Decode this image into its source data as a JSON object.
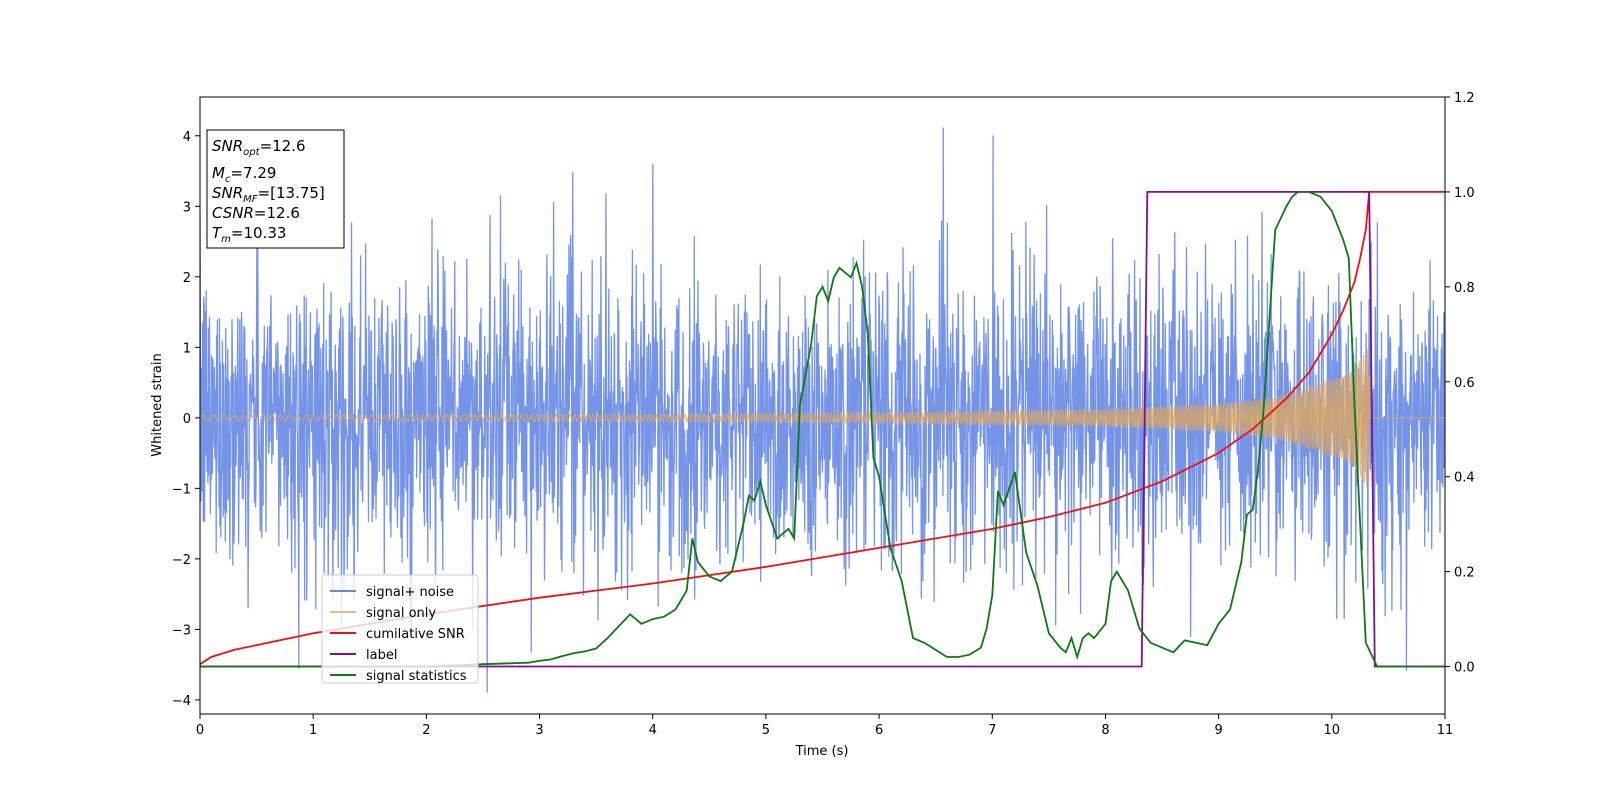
{
  "chart_data": {
    "type": "line",
    "xlabel": "Time (s)",
    "ylabel": "Whitened strain",
    "xlim": [
      0,
      11
    ],
    "ylim_left": [
      -4.2,
      4.55
    ],
    "ylim_right": [
      -0.1,
      1.2
    ],
    "x_ticks": [
      "0",
      "1",
      "2",
      "3",
      "4",
      "5",
      "6",
      "7",
      "8",
      "9",
      "10",
      "11"
    ],
    "y_left_ticks": [
      "4",
      "3",
      "2",
      "1",
      "0",
      "−1",
      "−2",
      "−3",
      "−4"
    ],
    "y_right_ticks": [
      "1.2",
      "1.0",
      "0.8",
      "0.6",
      "0.4",
      "0.2",
      "0.0"
    ],
    "grid": false,
    "legend_position": "lower-left",
    "annotation": {
      "snr_opt": {
        "sym": "SNR",
        "sub": "opt",
        "value": "=12.6"
      },
      "mc": {
        "sym": "M",
        "sub": "c",
        "value": "=7.29"
      },
      "snr_mf": {
        "sym": "SNR",
        "sub": "MF",
        "value": "=[13.75]"
      },
      "csnr": {
        "sym": "CSNR",
        "value": "=12.6"
      },
      "tm": {
        "sym": "T",
        "sub": "m",
        "value": "=10.33"
      }
    },
    "series": [
      {
        "name": "signal+ noise",
        "axis": "left",
        "color": "#6688e6",
        "style": "noise",
        "amplitude_sigma": 1.05,
        "x_range": [
          0,
          11
        ]
      },
      {
        "name": "signal only",
        "axis": "left",
        "color": "#e0a75c",
        "style": "chirp",
        "envelope": [
          [
            0,
            0.04
          ],
          [
            4,
            0.05
          ],
          [
            6,
            0.07
          ],
          [
            8,
            0.12
          ],
          [
            9,
            0.2
          ],
          [
            9.5,
            0.3
          ],
          [
            10,
            0.55
          ],
          [
            10.2,
            0.75
          ],
          [
            10.33,
            1.0
          ],
          [
            10.34,
            0.0
          ],
          [
            11,
            0.0
          ]
        ]
      },
      {
        "name": "cumilative SNR",
        "axis": "right",
        "color": "#ee1111",
        "style": "line",
        "x": [
          0,
          0.1,
          0.3,
          0.6,
          1,
          2,
          3,
          4,
          5,
          6,
          7,
          7.5,
          8,
          8.5,
          9,
          9.3,
          9.6,
          9.8,
          10,
          10.1,
          10.2,
          10.25,
          10.3,
          10.33,
          11
        ],
        "y": [
          0.005,
          0.02,
          0.035,
          0.05,
          0.07,
          0.11,
          0.145,
          0.175,
          0.21,
          0.25,
          0.29,
          0.315,
          0.345,
          0.39,
          0.45,
          0.5,
          0.565,
          0.62,
          0.7,
          0.75,
          0.81,
          0.86,
          0.92,
          1.0,
          1.0
        ]
      },
      {
        "name": "label",
        "axis": "right",
        "color": "#7f0f8f",
        "style": "line",
        "x": [
          0,
          8.32,
          8.37,
          10.33,
          10.38,
          11
        ],
        "y": [
          0,
          0,
          1,
          1,
          0,
          0
        ]
      },
      {
        "name": "signal statistics",
        "axis": "right",
        "color": "#117711",
        "style": "line",
        "x": [
          0,
          1,
          2,
          2.5,
          2.9,
          3.0,
          3.1,
          3.2,
          3.3,
          3.4,
          3.5,
          3.6,
          3.7,
          3.8,
          3.9,
          4.0,
          4.1,
          4.2,
          4.3,
          4.35,
          4.4,
          4.5,
          4.6,
          4.7,
          4.8,
          4.85,
          4.9,
          4.95,
          5.0,
          5.1,
          5.2,
          5.25,
          5.3,
          5.4,
          5.45,
          5.5,
          5.55,
          5.6,
          5.65,
          5.7,
          5.75,
          5.8,
          5.85,
          5.9,
          5.95,
          6.0,
          6.1,
          6.2,
          6.3,
          6.4,
          6.5,
          6.6,
          6.7,
          6.8,
          6.9,
          6.95,
          7.0,
          7.05,
          7.1,
          7.2,
          7.3,
          7.4,
          7.5,
          7.6,
          7.65,
          7.7,
          7.75,
          7.8,
          7.85,
          7.9,
          8.0,
          8.05,
          8.1,
          8.2,
          8.3,
          8.4,
          8.5,
          8.6,
          8.7,
          8.8,
          8.9,
          9.0,
          9.1,
          9.2,
          9.25,
          9.3,
          9.35,
          9.4,
          9.5,
          9.6,
          9.65,
          9.7,
          9.8,
          9.9,
          10.0,
          10.1,
          10.15,
          10.2,
          10.3,
          10.4,
          10.5,
          11
        ],
        "y": [
          0,
          0,
          0,
          0.005,
          0.008,
          0.012,
          0.015,
          0.022,
          0.028,
          0.032,
          0.038,
          0.06,
          0.085,
          0.11,
          0.09,
          0.1,
          0.105,
          0.12,
          0.16,
          0.27,
          0.22,
          0.19,
          0.18,
          0.2,
          0.3,
          0.36,
          0.35,
          0.39,
          0.34,
          0.27,
          0.29,
          0.27,
          0.55,
          0.68,
          0.78,
          0.8,
          0.77,
          0.82,
          0.84,
          0.83,
          0.82,
          0.85,
          0.8,
          0.7,
          0.44,
          0.4,
          0.25,
          0.18,
          0.06,
          0.05,
          0.035,
          0.02,
          0.02,
          0.025,
          0.04,
          0.08,
          0.15,
          0.37,
          0.34,
          0.41,
          0.24,
          0.17,
          0.07,
          0.04,
          0.03,
          0.06,
          0.02,
          0.06,
          0.07,
          0.06,
          0.09,
          0.18,
          0.2,
          0.16,
          0.08,
          0.05,
          0.04,
          0.03,
          0.055,
          0.05,
          0.045,
          0.09,
          0.12,
          0.22,
          0.32,
          0.33,
          0.42,
          0.55,
          0.92,
          0.97,
          0.99,
          1.0,
          1.0,
          0.99,
          0.96,
          0.9,
          0.86,
          0.55,
          0.05,
          0.0,
          0.0,
          0.0
        ]
      }
    ]
  }
}
